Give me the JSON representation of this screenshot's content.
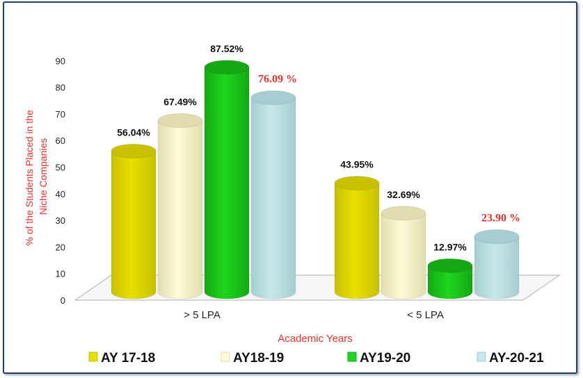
{
  "chart_data": {
    "type": "bar",
    "categories": [
      "> 5 LPA",
      "< 5 LPA"
    ],
    "series": [
      {
        "name": "AY 17-18",
        "values": [
          56.04,
          43.95
        ],
        "labels": [
          "56.04%",
          "43.95%"
        ],
        "color": "#e8e000",
        "top_color": "#c9c000",
        "label_color": "#111111"
      },
      {
        "name": "AY18-19",
        "values": [
          67.49,
          32.69
        ],
        "labels": [
          "67.49%",
          "32.69%"
        ],
        "color": "#fffbd6",
        "top_color": "#e2dcb0",
        "label_color": "#111111"
      },
      {
        "name": "AY19-20",
        "values": [
          87.52,
          12.97
        ],
        "labels": [
          "87.52%",
          "12.97%"
        ],
        "color": "#1ed61e",
        "top_color": "#14a814",
        "label_color": "#111111"
      },
      {
        "name": "AY-20-21",
        "values": [
          76.09,
          23.9
        ],
        "labels": [
          "76.09 %",
          "23.90 %"
        ],
        "color": "#c7e8ea",
        "top_color": "#a6cdd0",
        "label_color": "#e8332c"
      }
    ],
    "ylabel": "% of the Students Placed in the Niche Companies",
    "ylabel_lines": [
      "% of the Students Placed in the",
      "Niche Companies"
    ],
    "xlabel": "Academic Years",
    "yticks": [
      0,
      10,
      20,
      30,
      40,
      50,
      60,
      70,
      80,
      90
    ],
    "ylim": [
      0,
      90
    ],
    "grid": false,
    "legend_position": "bottom"
  }
}
